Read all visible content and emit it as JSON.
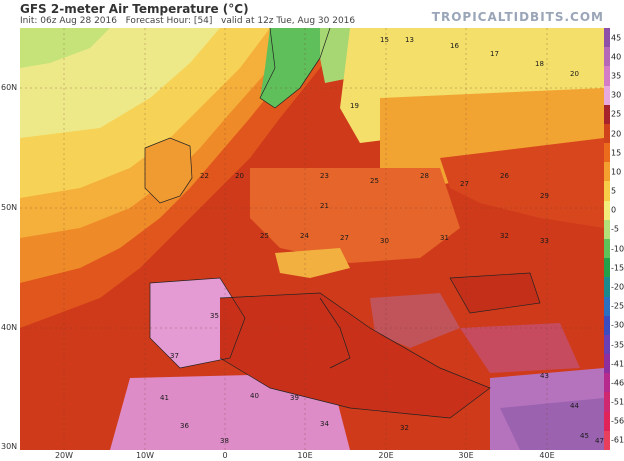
{
  "header": {
    "title": "GFS 2-meter Air Temperature (°C)",
    "init": "Init: 06z Aug 28 2016",
    "forecast_hour": "Forecast Hour: [54]",
    "valid": "valid at 12z Tue, Aug 30 2016",
    "brand": "TROPICALTIDBITS.COM"
  },
  "axes": {
    "lat_labels": [
      "60N",
      "50N",
      "40N",
      "30N"
    ],
    "lon_labels": [
      "20W",
      "10W",
      "0",
      "10E",
      "20E",
      "30E",
      "40E"
    ]
  },
  "colorbar": {
    "ticks": [
      "45",
      "40",
      "35",
      "30",
      "25",
      "20",
      "15",
      "10",
      "5",
      "0",
      "-5",
      "-10",
      "-15",
      "-20",
      "-25",
      "-30",
      "-35",
      "-41",
      "-46",
      "-51",
      "-56",
      "-61"
    ],
    "colors": [
      "#8d4fa8",
      "#b568b8",
      "#d47cc5",
      "#e7a9de",
      "#a8242c",
      "#d0421c",
      "#ea6c1c",
      "#f3a02e",
      "#f7cc46",
      "#f2ec7a",
      "#b4e07a",
      "#5fc15a",
      "#23a04a",
      "#1a8a8e",
      "#2a6fc0",
      "#3b4cc0",
      "#6a3fb5",
      "#8e2fa0",
      "#b52a8c",
      "#d02870",
      "#e0245a",
      "#e8405c"
    ]
  },
  "map_labels": [
    {
      "text": "15"
    },
    {
      "text": "13"
    },
    {
      "text": "16"
    },
    {
      "text": "17"
    },
    {
      "text": "18"
    },
    {
      "text": "20"
    },
    {
      "text": "22"
    },
    {
      "text": "20"
    },
    {
      "text": "23"
    },
    {
      "text": "25"
    },
    {
      "text": "28"
    },
    {
      "text": "27"
    },
    {
      "text": "25"
    },
    {
      "text": "24"
    },
    {
      "text": "27"
    },
    {
      "text": "30"
    },
    {
      "text": "31"
    },
    {
      "text": "32"
    },
    {
      "text": "33"
    },
    {
      "text": "35"
    },
    {
      "text": "37"
    },
    {
      "text": "40"
    },
    {
      "text": "39"
    },
    {
      "text": "41"
    },
    {
      "text": "36"
    },
    {
      "text": "34"
    },
    {
      "text": "32"
    },
    {
      "text": "43"
    },
    {
      "text": "44"
    },
    {
      "text": "45"
    },
    {
      "text": "47"
    },
    {
      "text": "19"
    },
    {
      "text": "21"
    },
    {
      "text": "26"
    },
    {
      "text": "29"
    },
    {
      "text": "38"
    }
  ]
}
